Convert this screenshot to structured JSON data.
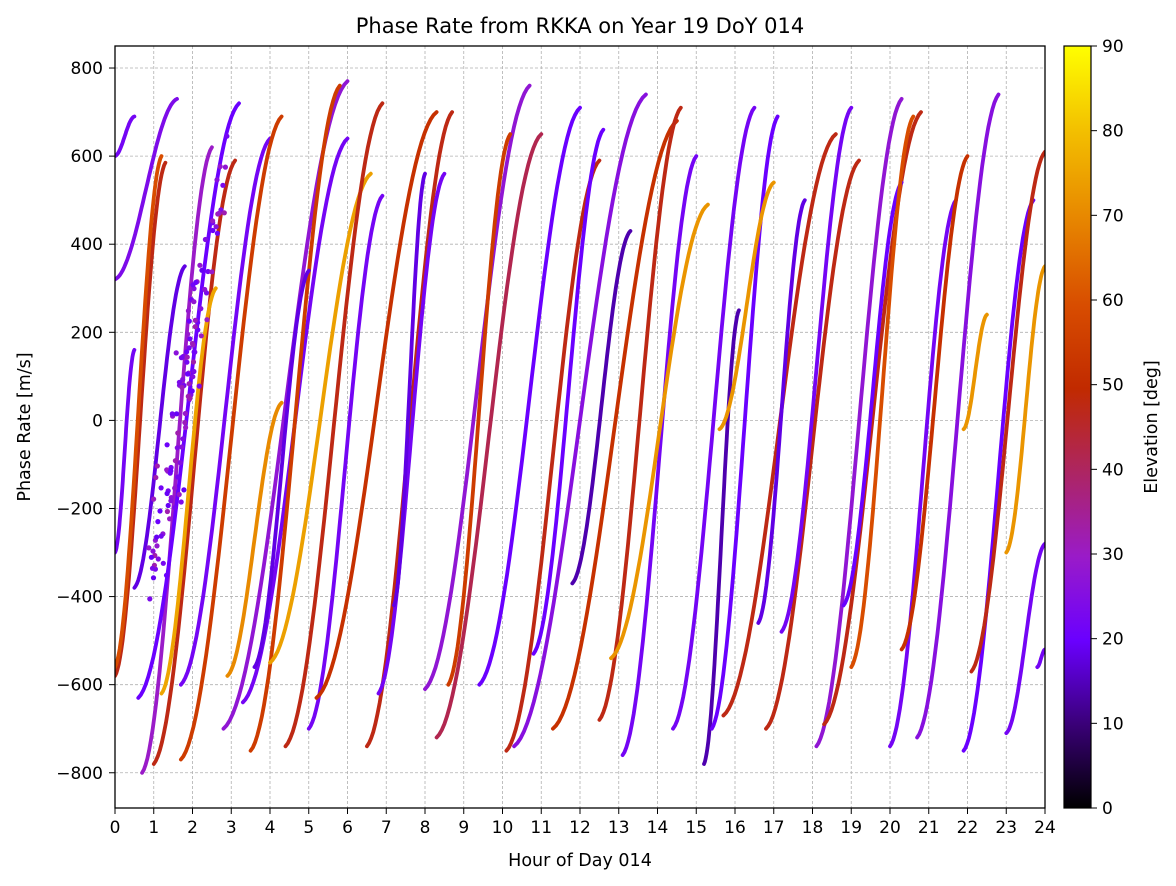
{
  "chart_data": {
    "type": "scatter",
    "title": "Phase Rate from RKKA on Year 19 DoY 014",
    "xlabel": "Hour of Day 014",
    "ylabel": "Phase Rate [m/s]",
    "xlim": [
      0,
      24
    ],
    "ylim": [
      -880,
      850
    ],
    "x_ticks": [
      "0",
      "1",
      "2",
      "3",
      "4",
      "5",
      "6",
      "7",
      "8",
      "9",
      "10",
      "11",
      "12",
      "13",
      "14",
      "15",
      "16",
      "17",
      "18",
      "19",
      "20",
      "21",
      "22",
      "23",
      "24"
    ],
    "y_ticks": [
      "800",
      "600",
      "400",
      "200",
      "0",
      "−200",
      "−400",
      "−600",
      "−800"
    ],
    "grid": true,
    "colorbar": {
      "label": "Elevation [deg]",
      "range": [
        0,
        90
      ],
      "ticks": [
        "0",
        "10",
        "20",
        "30",
        "40",
        "50",
        "60",
        "70",
        "80",
        "90"
      ],
      "colormap": "gnuplot",
      "colors": [
        "#000000",
        "#6a00ff",
        "#9a1bc8",
        "#c12a00",
        "#e46d00",
        "#ffff00"
      ]
    },
    "tracks": [
      {
        "x": [
          0.0,
          0.5
        ],
        "y": [
          600,
          690
        ],
        "elevation": 22
      },
      {
        "x": [
          0.0,
          1.6
        ],
        "y": [
          320,
          730
        ],
        "elevation": 24
      },
      {
        "x": [
          0.0,
          1.3
        ],
        "y": [
          -580,
          585
        ],
        "elevation": 48
      },
      {
        "x": [
          0.0,
          0.5
        ],
        "y": [
          -300,
          160
        ],
        "elevation": 22
      },
      {
        "x": [
          0.0,
          1.2
        ],
        "y": [
          -560,
          600
        ],
        "elevation": 60
      },
      {
        "x": [
          0.5,
          1.8
        ],
        "y": [
          -380,
          350
        ],
        "elevation": 18
      },
      {
        "x": [
          0.7,
          2.5
        ],
        "y": [
          -800,
          620
        ],
        "elevation": 30
      },
      {
        "x": [
          0.6,
          3.2
        ],
        "y": [
          -630,
          720
        ],
        "elevation": 20
      },
      {
        "x": [
          1.0,
          3.1
        ],
        "y": [
          -780,
          590
        ],
        "elevation": 48
      },
      {
        "x": [
          1.2,
          2.6
        ],
        "y": [
          -620,
          300
        ],
        "elevation": 75
      },
      {
        "x": [
          1.7,
          4.0
        ],
        "y": [
          -600,
          640
        ],
        "elevation": 22
      },
      {
        "x": [
          1.7,
          4.3
        ],
        "y": [
          -770,
          690
        ],
        "elevation": 55
      },
      {
        "x": [
          2.8,
          6.0
        ],
        "y": [
          -700,
          770
        ],
        "elevation": 28
      },
      {
        "x": [
          2.9,
          4.3
        ],
        "y": [
          -580,
          40
        ],
        "elevation": 70
      },
      {
        "x": [
          3.3,
          6.0
        ],
        "y": [
          -640,
          640
        ],
        "elevation": 22
      },
      {
        "x": [
          3.5,
          5.8
        ],
        "y": [
          -750,
          760
        ],
        "elevation": 55
      },
      {
        "x": [
          3.6,
          5.0
        ],
        "y": [
          -560,
          340
        ],
        "elevation": 18
      },
      {
        "x": [
          4.0,
          6.6
        ],
        "y": [
          -550,
          560
        ],
        "elevation": 74
      },
      {
        "x": [
          4.4,
          6.9
        ],
        "y": [
          -740,
          720
        ],
        "elevation": 48
      },
      {
        "x": [
          5.0,
          6.9
        ],
        "y": [
          -700,
          510
        ],
        "elevation": 22
      },
      {
        "x": [
          5.2,
          8.3
        ],
        "y": [
          -630,
          700
        ],
        "elevation": 52
      },
      {
        "x": [
          6.5,
          8.7
        ],
        "y": [
          -740,
          700
        ],
        "elevation": 48
      },
      {
        "x": [
          6.8,
          8.5
        ],
        "y": [
          -620,
          560
        ],
        "elevation": 22
      },
      {
        "x": [
          7.2,
          8.0
        ],
        "y": [
          -420,
          560
        ],
        "elevation": 18
      },
      {
        "x": [
          8.0,
          10.7
        ],
        "y": [
          -610,
          760
        ],
        "elevation": 28
      },
      {
        "x": [
          8.3,
          11.0
        ],
        "y": [
          -720,
          650
        ],
        "elevation": 42
      },
      {
        "x": [
          8.6,
          10.2
        ],
        "y": [
          -600,
          650
        ],
        "elevation": 55
      },
      {
        "x": [
          9.4,
          12.0
        ],
        "y": [
          -600,
          710
        ],
        "elevation": 20
      },
      {
        "x": [
          10.1,
          12.5
        ],
        "y": [
          -750,
          590
        ],
        "elevation": 48
      },
      {
        "x": [
          10.3,
          13.7
        ],
        "y": [
          -740,
          740
        ],
        "elevation": 26
      },
      {
        "x": [
          10.8,
          12.6
        ],
        "y": [
          -530,
          660
        ],
        "elevation": 20
      },
      {
        "x": [
          11.3,
          14.5
        ],
        "y": [
          -700,
          680
        ],
        "elevation": 52
      },
      {
        "x": [
          11.8,
          13.3
        ],
        "y": [
          -370,
          430
        ],
        "elevation": 14
      },
      {
        "x": [
          12.5,
          14.6
        ],
        "y": [
          -680,
          710
        ],
        "elevation": 48
      },
      {
        "x": [
          13.1,
          15.0
        ],
        "y": [
          -760,
          600
        ],
        "elevation": 22
      },
      {
        "x": [
          12.8,
          15.3
        ],
        "y": [
          -540,
          490
        ],
        "elevation": 72
      },
      {
        "x": [
          14.4,
          16.5
        ],
        "y": [
          -700,
          710
        ],
        "elevation": 22
      },
      {
        "x": [
          15.2,
          16.1
        ],
        "y": [
          -780,
          250
        ],
        "elevation": 14
      },
      {
        "x": [
          15.4,
          17.1
        ],
        "y": [
          -700,
          690
        ],
        "elevation": 20
      },
      {
        "x": [
          15.7,
          18.6
        ],
        "y": [
          -670,
          650
        ],
        "elevation": 48
      },
      {
        "x": [
          15.6,
          17.0
        ],
        "y": [
          -20,
          540
        ],
        "elevation": 72
      },
      {
        "x": [
          16.6,
          17.8
        ],
        "y": [
          -460,
          500
        ],
        "elevation": 18
      },
      {
        "x": [
          16.8,
          19.2
        ],
        "y": [
          -700,
          590
        ],
        "elevation": 48
      },
      {
        "x": [
          17.2,
          19.0
        ],
        "y": [
          -480,
          710
        ],
        "elevation": 22
      },
      {
        "x": [
          18.1,
          20.3
        ],
        "y": [
          -740,
          730
        ],
        "elevation": 28
      },
      {
        "x": [
          18.3,
          20.8
        ],
        "y": [
          -690,
          700
        ],
        "elevation": 48
      },
      {
        "x": [
          18.8,
          20.3
        ],
        "y": [
          -420,
          540
        ],
        "elevation": 20
      },
      {
        "x": [
          19.0,
          20.6
        ],
        "y": [
          -560,
          690
        ],
        "elevation": 60
      },
      {
        "x": [
          20.0,
          21.7
        ],
        "y": [
          -740,
          500
        ],
        "elevation": 22
      },
      {
        "x": [
          20.3,
          22.0
        ],
        "y": [
          -520,
          600
        ],
        "elevation": 52
      },
      {
        "x": [
          20.7,
          22.8
        ],
        "y": [
          -720,
          740
        ],
        "elevation": 26
      },
      {
        "x": [
          21.9,
          22.5
        ],
        "y": [
          -20,
          240
        ],
        "elevation": 72
      },
      {
        "x": [
          21.9,
          23.7
        ],
        "y": [
          -750,
          500
        ],
        "elevation": 20
      },
      {
        "x": [
          22.1,
          24.0
        ],
        "y": [
          -570,
          610
        ],
        "elevation": 48
      },
      {
        "x": [
          23.0,
          24.0
        ],
        "y": [
          -710,
          -280
        ],
        "elevation": 22
      },
      {
        "x": [
          23.0,
          24.0
        ],
        "y": [
          -300,
          350
        ],
        "elevation": 72
      },
      {
        "x": [
          23.8,
          24.0
        ],
        "y": [
          -560,
          -520
        ],
        "elevation": 22
      }
    ],
    "scatter_cluster": {
      "x": [
        1.0,
        2.8
      ],
      "y": [
        -350,
        600
      ],
      "elevation": 26
    }
  }
}
